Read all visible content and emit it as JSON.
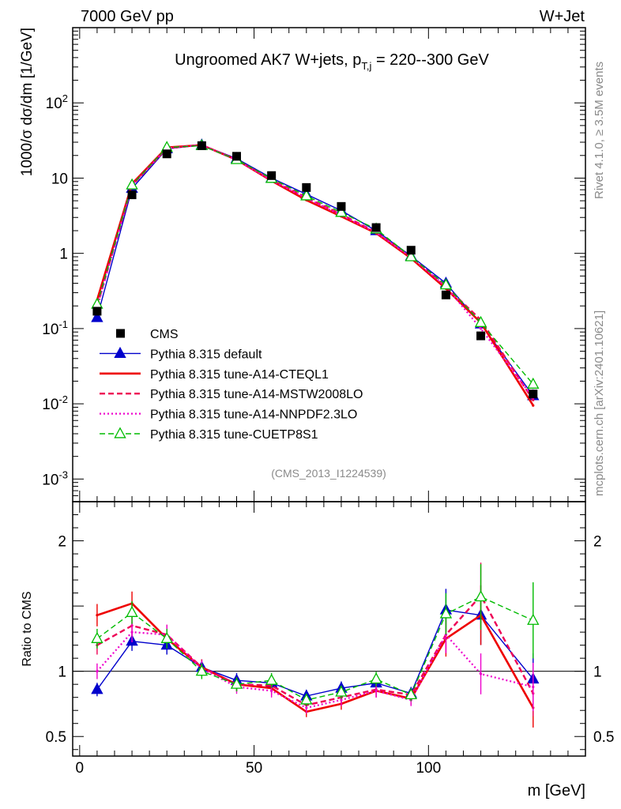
{
  "header": {
    "left": "7000 GeV pp",
    "right": "W+Jet"
  },
  "side_labels": {
    "top": "Rivet 4.1.0, ≥ 3.5M events",
    "bottom": "mcplots.cern.ch [arXiv:2401.10621]"
  },
  "chart_data": [
    {
      "type": "line",
      "panel": "main",
      "title_main": "Ungroomed AK7 W+jets, p",
      "title_sub": "T,j",
      "title_tail": " = 220--300 GeV",
      "ylabel": "1000/σ  dσ/dm [1/GeV]",
      "yscale": "log",
      "ylim": [
        0.0005,
        1000
      ],
      "xlim": [
        -2,
        145
      ],
      "yticks": [
        "10^-3",
        "10^-2",
        "10^-1",
        "1",
        "10",
        "10^2"
      ],
      "analysis_tag": "(CMS_2013_I1224539)",
      "x": [
        5,
        15,
        25,
        35,
        45,
        55,
        65,
        75,
        85,
        95,
        105,
        115,
        130
      ],
      "data": {
        "name": "CMS",
        "values": [
          0.17,
          6.0,
          21.0,
          27.0,
          19.5,
          10.8,
          7.5,
          4.2,
          2.2,
          1.1,
          0.28,
          0.08,
          0.0135
        ]
      },
      "series": [
        {
          "name": "Pythia 8.315 default",
          "color": "#0000cc",
          "style": "solid",
          "marker": "triangle-filled",
          "values": [
            0.14,
            7.3,
            24.5,
            27.5,
            18.2,
            10.0,
            6.1,
            3.7,
            2.0,
            0.92,
            0.4,
            0.115,
            0.0128
          ]
        },
        {
          "name": "Pythia 8.315 tune-A14-CTEQL1",
          "color": "#ee0000",
          "style": "solid",
          "marker": "none",
          "values": [
            0.24,
            8.4,
            25.5,
            27.5,
            17.5,
            9.2,
            5.1,
            3.1,
            1.85,
            0.86,
            0.34,
            0.12,
            0.0095
          ]
        },
        {
          "name": "Pythia 8.315 tune-A14-MSTW2008LO",
          "color": "#ee0055",
          "style": "dashed",
          "marker": "none",
          "values": [
            0.2,
            8.0,
            25.0,
            27.5,
            17.5,
            9.5,
            5.5,
            3.3,
            1.9,
            0.9,
            0.36,
            0.13,
            0.0112
          ]
        },
        {
          "name": "Pythia 8.315 tune-A14-NNPDF2.3LO",
          "color": "#ee00cc",
          "style": "dotted",
          "marker": "none",
          "values": [
            0.19,
            8.1,
            25.0,
            27.5,
            17.5,
            9.3,
            5.4,
            3.2,
            1.88,
            0.89,
            0.36,
            0.1,
            0.012
          ]
        },
        {
          "name": "Pythia 8.315 tune-CUETP8S1",
          "color": "#00bb00",
          "style": "dashed",
          "marker": "triangle-open",
          "values": [
            0.21,
            8.1,
            25.5,
            27.0,
            17.6,
            9.9,
            5.8,
            3.5,
            2.1,
            0.9,
            0.38,
            0.12,
            0.0182
          ]
        }
      ]
    },
    {
      "type": "line",
      "panel": "ratio",
      "ylabel": "Ratio to CMS",
      "xlabel": "m [GeV]",
      "ylim": [
        0.35,
        2.3
      ],
      "xlim": [
        -2,
        145
      ],
      "yticks": [
        "0.5",
        "1",
        "2"
      ],
      "xticks": [
        "0",
        "50",
        "100"
      ],
      "reference": 1,
      "x": [
        5,
        15,
        25,
        35,
        45,
        55,
        65,
        75,
        85,
        95,
        105,
        115,
        130
      ],
      "series": [
        {
          "name": "Pythia 8.315 default",
          "color": "#0000cc",
          "style": "solid",
          "marker": "triangle-filled",
          "values": [
            0.86,
            1.23,
            1.2,
            1.03,
            0.93,
            0.91,
            0.81,
            0.87,
            0.91,
            0.83,
            1.47,
            1.43,
            0.94
          ]
        },
        {
          "name": "Pythia 8.315 tune-A14-CTEQL1",
          "color": "#ee0000",
          "style": "solid",
          "marker": "none",
          "values": [
            1.43,
            1.52,
            1.25,
            1.03,
            0.9,
            0.87,
            0.69,
            0.75,
            0.85,
            0.79,
            1.25,
            1.43,
            0.72
          ]
        },
        {
          "name": "Pythia 8.315 tune-A14-MSTW2008LO",
          "color": "#ee0055",
          "style": "dashed",
          "marker": "none",
          "values": [
            1.2,
            1.35,
            1.28,
            1.03,
            0.9,
            0.89,
            0.74,
            0.8,
            0.86,
            0.82,
            1.28,
            1.58,
            0.83
          ]
        },
        {
          "name": "Pythia 8.315 tune-A14-NNPDF2.3LO",
          "color": "#ee00cc",
          "style": "dotted",
          "marker": "none",
          "values": [
            1.0,
            1.3,
            1.28,
            1.02,
            0.88,
            0.85,
            0.72,
            0.78,
            0.85,
            0.78,
            1.28,
            0.98,
            0.88
          ]
        },
        {
          "name": "Pythia 8.315 tune-CUETP8S1",
          "color": "#00bb00",
          "style": "dashed",
          "marker": "triangle-open",
          "values": [
            1.25,
            1.45,
            1.25,
            1.0,
            0.9,
            0.93,
            0.78,
            0.84,
            0.94,
            0.82,
            1.44,
            1.57,
            1.39
          ]
        }
      ]
    }
  ]
}
